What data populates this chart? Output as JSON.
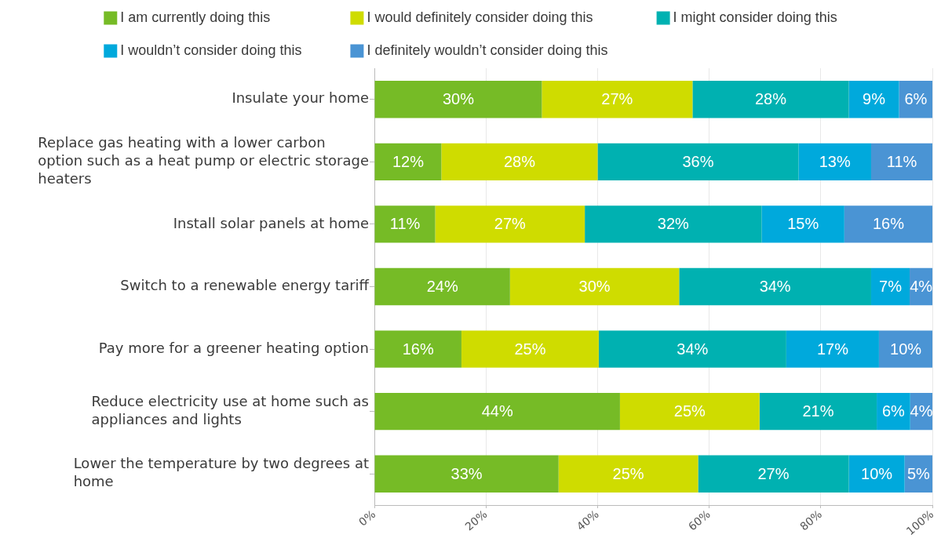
{
  "chart_data": {
    "type": "bar",
    "orientation": "horizontal",
    "stacked": true,
    "categories": [
      "Insulate your home",
      "Replace gas heating with a lower carbon option such as a heat pump or electric storage heaters",
      "Install solar panels at home",
      "Switch to a renewable energy tariff",
      "Pay more for a greener heating option",
      "Reduce electricity use at home such as appliances and lights",
      "Lower the temperature by two degrees at home"
    ],
    "series": [
      {
        "name": "I am currently doing this",
        "color": "#76bb26",
        "values": [
          30,
          12,
          10.9,
          24.3,
          15.6,
          44,
          33
        ],
        "value_labels": [
          "30%",
          "12%",
          "11%",
          "24%",
          "16%",
          "44%",
          "33%"
        ]
      },
      {
        "name": "I would definitely consider doing this",
        "color": "#cfdc00",
        "values": [
          27,
          28,
          26.8,
          30.3,
          24.6,
          25,
          25
        ],
        "value_labels": [
          "27%",
          "28%",
          "27%",
          "30%",
          "25%",
          "25%",
          "25%"
        ]
      },
      {
        "name": "I might consider doing this",
        "color": "#00b1b1",
        "values": [
          28,
          36,
          31.7,
          34.4,
          33.6,
          21,
          27
        ],
        "value_labels": [
          "28%",
          "36%",
          "32%",
          "34%",
          "34%",
          "21%",
          "27%"
        ]
      },
      {
        "name": "I wouldn’t consider doing this",
        "color": "#00a9dc",
        "values": [
          9,
          13,
          14.8,
          6.9,
          16.6,
          6,
          10
        ],
        "value_labels": [
          "9%",
          "13%",
          "15%",
          "7%",
          "17%",
          "6%",
          "10%"
        ]
      },
      {
        "name": "I definitely wouldn’t consider doing this",
        "color": "#4a94d4",
        "values": [
          6,
          11,
          15.8,
          4.1,
          9.6,
          4,
          5
        ],
        "value_labels": [
          "6%",
          "11%",
          "16%",
          "4%",
          "10%",
          "4%",
          "5%"
        ]
      }
    ],
    "xlim": [
      0,
      100
    ],
    "xticks": [
      {
        "value": 0,
        "label": "0%"
      },
      {
        "value": 20,
        "label": "20%"
      },
      {
        "value": 40,
        "label": "40%"
      },
      {
        "value": 60,
        "label": "60%"
      },
      {
        "value": 80,
        "label": "80%"
      },
      {
        "value": 100,
        "label": "100%"
      }
    ],
    "grid": "x",
    "legend": "top"
  }
}
